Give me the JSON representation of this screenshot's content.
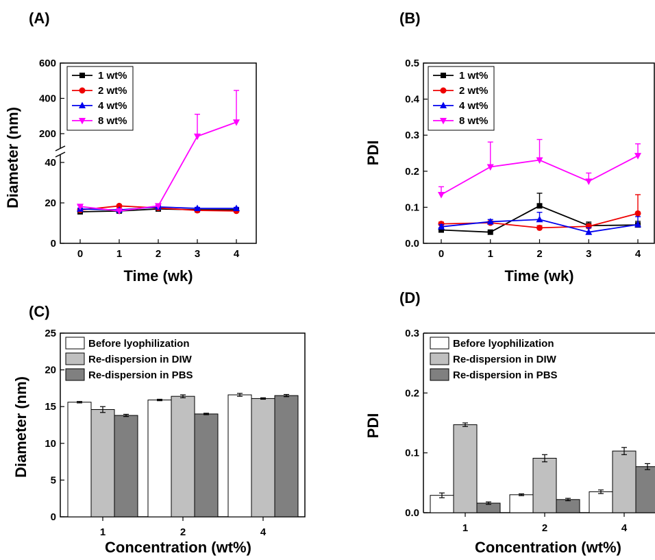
{
  "chart_data": [
    {
      "panel": "(A)",
      "type": "line",
      "title": "",
      "xlabel": "Time (wk)",
      "ylabel": "Diameter (nm)",
      "x": [
        0,
        1,
        2,
        3,
        4
      ],
      "xticks": [
        "0",
        "1",
        "2",
        "3",
        "4"
      ],
      "y_axis_break": true,
      "ylim_lower": [
        0,
        40
      ],
      "ylim_upper": [
        100,
        600
      ],
      "yticks_lower": [
        "0",
        "20",
        "40"
      ],
      "yticks_upper": [
        "200",
        "400",
        "600"
      ],
      "legend_position": "top-left",
      "series": [
        {
          "name": "1 wt%",
          "color": "#000000",
          "marker": "square",
          "values": [
            15.6,
            16.0,
            17.0,
            16.6,
            16.6
          ],
          "errors": [
            0.3,
            0.5,
            0.6,
            0.5,
            0.5
          ]
        },
        {
          "name": "2 wt%",
          "color": "#ee0000",
          "marker": "circle",
          "values": [
            16.5,
            18.5,
            17.5,
            16.3,
            16.0
          ],
          "errors": [
            0.4,
            0.6,
            0.6,
            0.5,
            0.5
          ]
        },
        {
          "name": "4 wt%",
          "color": "#0000ee",
          "marker": "triangle-up",
          "values": [
            17.0,
            16.5,
            18.0,
            17.3,
            17.3
          ],
          "errors": [
            0.4,
            0.5,
            0.6,
            0.5,
            0.5
          ]
        },
        {
          "name": "8 wt%",
          "color": "#ff00ff",
          "marker": "triangle-down",
          "values": [
            18.2,
            16.0,
            18.5,
            185,
            265
          ],
          "errors": [
            0.5,
            0.5,
            0.6,
            125,
            180
          ]
        }
      ]
    },
    {
      "panel": "(B)",
      "type": "line",
      "title": "",
      "xlabel": "Time (wk)",
      "ylabel": "PDI",
      "x": [
        0,
        1,
        2,
        3,
        4
      ],
      "xticks": [
        "0",
        "1",
        "2",
        "3",
        "4"
      ],
      "ylim": [
        0,
        0.5
      ],
      "yticks": [
        "0.0",
        "0.1",
        "0.2",
        "0.3",
        "0.4",
        "0.5"
      ],
      "legend_position": "top-left",
      "series": [
        {
          "name": "1 wt%",
          "color": "#000000",
          "marker": "square",
          "values": [
            0.037,
            0.031,
            0.104,
            0.049,
            0.051
          ],
          "errors": [
            0.005,
            0.003,
            0.035,
            0.01,
            0.01
          ]
        },
        {
          "name": "2 wt%",
          "color": "#ee0000",
          "marker": "circle",
          "values": [
            0.054,
            0.057,
            0.043,
            0.047,
            0.083
          ],
          "errors": [
            0.005,
            0.005,
            0.006,
            0.006,
            0.052
          ]
        },
        {
          "name": "4 wt%",
          "color": "#0000ee",
          "marker": "triangle-up",
          "values": [
            0.046,
            0.06,
            0.066,
            0.031,
            0.052
          ],
          "errors": [
            0.006,
            0.006,
            0.02,
            0.012,
            0.022
          ]
        },
        {
          "name": "8 wt%",
          "color": "#ff00ff",
          "marker": "triangle-down",
          "values": [
            0.135,
            0.212,
            0.231,
            0.172,
            0.243
          ],
          "errors": [
            0.022,
            0.069,
            0.057,
            0.023,
            0.033
          ]
        }
      ]
    },
    {
      "panel": "(C)",
      "type": "bar",
      "title": "",
      "xlabel": "Concentration (wt%)",
      "ylabel": "Diameter (nm)",
      "categories": [
        "1",
        "2",
        "4"
      ],
      "ylim": [
        0,
        25
      ],
      "yticks": [
        "0",
        "5",
        "10",
        "15",
        "20",
        "25"
      ],
      "legend_position": "top-left",
      "series": [
        {
          "name": "Before lyophilization",
          "color": "#ffffff",
          "values": [
            15.6,
            15.9,
            16.6
          ],
          "errors": [
            0.1,
            0.1,
            0.2
          ]
        },
        {
          "name": "Re-dispersion in DIW",
          "color": "#c0c0c0",
          "values": [
            14.6,
            16.4,
            16.1
          ],
          "errors": [
            0.4,
            0.2,
            0.1
          ]
        },
        {
          "name": "Re-dispersion in PBS",
          "color": "#808080",
          "values": [
            13.8,
            14.0,
            16.5
          ],
          "errors": [
            0.15,
            0.1,
            0.15
          ]
        }
      ]
    },
    {
      "panel": "(D)",
      "type": "bar",
      "title": "",
      "xlabel": "Concentration (wt%)",
      "ylabel": "PDI",
      "categories": [
        "1",
        "2",
        "4"
      ],
      "ylim": [
        0,
        0.3
      ],
      "yticks": [
        "0.0",
        "0.1",
        "0.2",
        "0.3"
      ],
      "legend_position": "top-left",
      "series": [
        {
          "name": "Before lyophilization",
          "color": "#ffffff",
          "values": [
            0.029,
            0.03,
            0.035
          ],
          "errors": [
            0.004,
            0.0015,
            0.003
          ]
        },
        {
          "name": "Re-dispersion in DIW",
          "color": "#c0c0c0",
          "values": [
            0.147,
            0.091,
            0.103
          ],
          "errors": [
            0.003,
            0.006,
            0.006
          ]
        },
        {
          "name": "Re-dispersion in PBS",
          "color": "#808080",
          "values": [
            0.016,
            0.022,
            0.077
          ],
          "errors": [
            0.002,
            0.002,
            0.005
          ]
        }
      ]
    }
  ]
}
